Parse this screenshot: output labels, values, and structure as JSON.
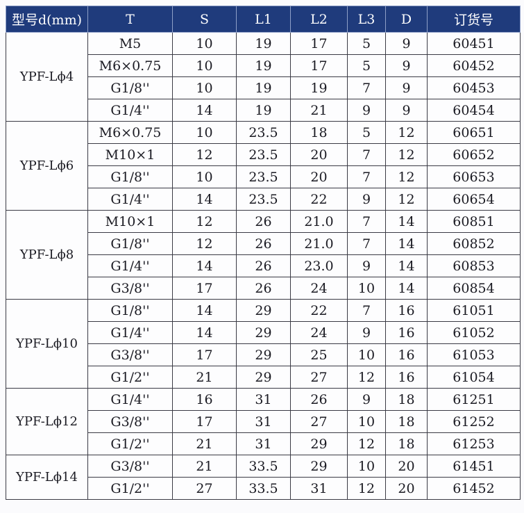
{
  "headers": [
    "型号d(mm)",
    "T",
    "S",
    "L1",
    "L2",
    "L3",
    "D",
    "订货号"
  ],
  "groups": [
    {
      "model": "YPF-Lϕ4",
      "rows": [
        [
          "M5",
          "10",
          "19",
          "17",
          "5",
          "9",
          "60451"
        ],
        [
          "M6×0.75",
          "10",
          "19",
          "17",
          "5",
          "9",
          "60452"
        ],
        [
          "G1/8''",
          "10",
          "19",
          "19",
          "7",
          "9",
          "60453"
        ],
        [
          "G1/4''",
          "14",
          "19",
          "21",
          "9",
          "9",
          "60454"
        ]
      ]
    },
    {
      "model": "YPF-Lϕ6",
      "rows": [
        [
          "M6×0.75",
          "10",
          "23.5",
          "18",
          "5",
          "12",
          "60651"
        ],
        [
          "M10×1",
          "12",
          "23.5",
          "20",
          "7",
          "12",
          "60652"
        ],
        [
          "G1/8''",
          "10",
          "23.5",
          "20",
          "7",
          "12",
          "60653"
        ],
        [
          "G1/4''",
          "14",
          "23.5",
          "22",
          "9",
          "12",
          "60654"
        ]
      ]
    },
    {
      "model": "YPF-Lϕ8",
      "rows": [
        [
          "M10×1",
          "12",
          "26",
          "21.0",
          "7",
          "14",
          "60851"
        ],
        [
          "G1/8''",
          "12",
          "26",
          "21.0",
          "7",
          "14",
          "60852"
        ],
        [
          "G1/4''",
          "14",
          "26",
          "23.0",
          "9",
          "14",
          "60853"
        ],
        [
          "G3/8''",
          "17",
          "26",
          "24",
          "10",
          "14",
          "60854"
        ]
      ]
    },
    {
      "model": "YPF-Lϕ10",
      "rows": [
        [
          "G1/8''",
          "14",
          "29",
          "22",
          "7",
          "16",
          "61051"
        ],
        [
          "G1/4''",
          "14",
          "29",
          "24",
          "9",
          "16",
          "61052"
        ],
        [
          "G3/8''",
          "17",
          "29",
          "25",
          "10",
          "16",
          "61053"
        ],
        [
          "G1/2''",
          "21",
          "29",
          "27",
          "12",
          "16",
          "61054"
        ]
      ]
    },
    {
      "model": "YPF-Lϕ12",
      "rows": [
        [
          "G1/4''",
          "16",
          "31",
          "26",
          "9",
          "18",
          "61251"
        ],
        [
          "G3/8''",
          "17",
          "31",
          "27",
          "10",
          "18",
          "61252"
        ],
        [
          "G1/2''",
          "21",
          "31",
          "29",
          "12",
          "18",
          "61253"
        ]
      ]
    },
    {
      "model": "YPF-Lϕ14",
      "rows": [
        [
          "G3/8''",
          "21",
          "33.5",
          "29",
          "10",
          "20",
          "61451"
        ],
        [
          "G1/2''",
          "27",
          "33.5",
          "31",
          "12",
          "20",
          "61452"
        ]
      ]
    }
  ]
}
